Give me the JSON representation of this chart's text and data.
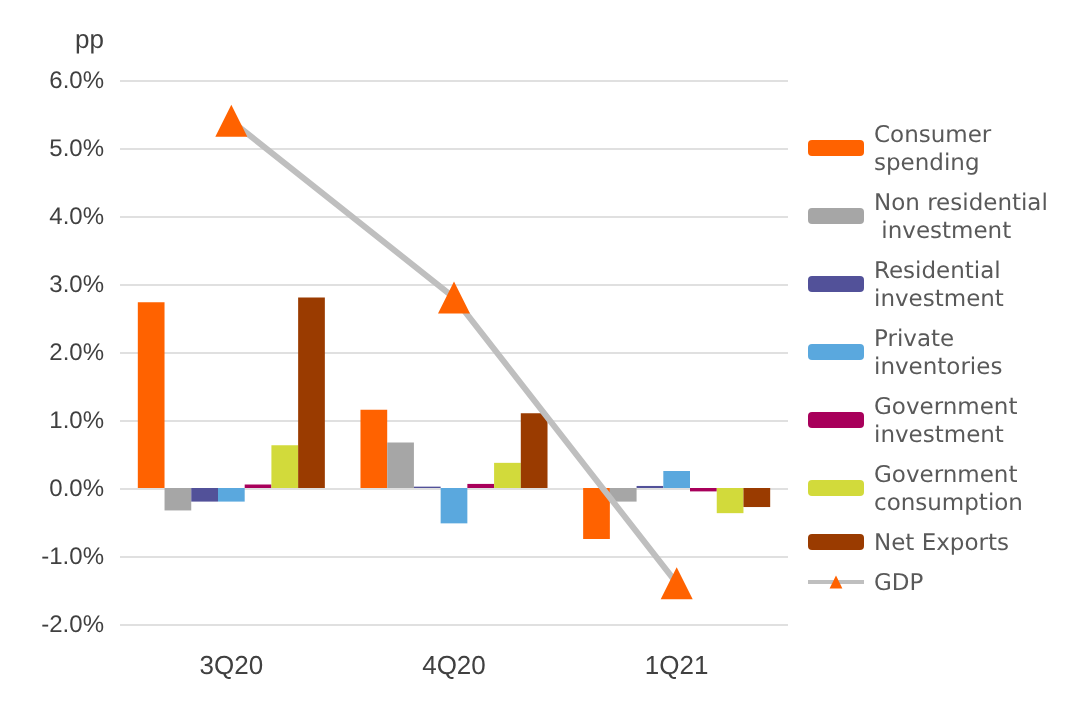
{
  "chart_data": {
    "type": "bar",
    "ylabel": "pp",
    "categories": [
      "3Q20",
      "4Q20",
      "1Q21"
    ],
    "series": [
      {
        "name": "Consumer spending",
        "color": "#ff6200",
        "values": [
          2.73,
          1.15,
          -0.75
        ]
      },
      {
        "name": "Non residential investment",
        "color": "#a6a6a6",
        "values": [
          -0.33,
          0.67,
          -0.2
        ]
      },
      {
        "name": "Residential investment",
        "color": "#525199",
        "values": [
          -0.2,
          0.02,
          0.03
        ]
      },
      {
        "name": "Private inventories",
        "color": "#5aa8de",
        "values": [
          -0.2,
          -0.52,
          0.25
        ]
      },
      {
        "name": "Government investment",
        "color": "#a8005b",
        "values": [
          0.05,
          0.06,
          -0.05
        ]
      },
      {
        "name": "Government consumption",
        "color": "#d2da3b",
        "values": [
          0.63,
          0.37,
          -0.37
        ]
      },
      {
        "name": "Net Exports",
        "color": "#9a3b00",
        "values": [
          2.8,
          1.1,
          -0.28
        ]
      },
      {
        "name": "GDP",
        "type": "line",
        "color": "#bfbfbf",
        "colors": [
          "#ff6200",
          "#ff6200",
          "#ff6200"
        ],
        "marker": "triangle",
        "values": [
          5.4,
          2.8,
          -1.4
        ]
      }
    ],
    "ylim": [
      -2,
      6
    ],
    "yticks": [
      {
        "value": -2,
        "label": "-2.0%"
      },
      {
        "value": -1,
        "label": "-1.0%"
      },
      {
        "value": 0,
        "label": "0.0%"
      },
      {
        "value": 1,
        "label": "1.0%"
      },
      {
        "value": 2,
        "label": "2.0%"
      },
      {
        "value": 3,
        "label": "3.0%"
      },
      {
        "value": 4,
        "label": "4.0%"
      },
      {
        "value": 5,
        "label": "5.0%"
      },
      {
        "value": 6,
        "label": "6.0%"
      }
    ],
    "grid": "y",
    "legend": "right"
  }
}
